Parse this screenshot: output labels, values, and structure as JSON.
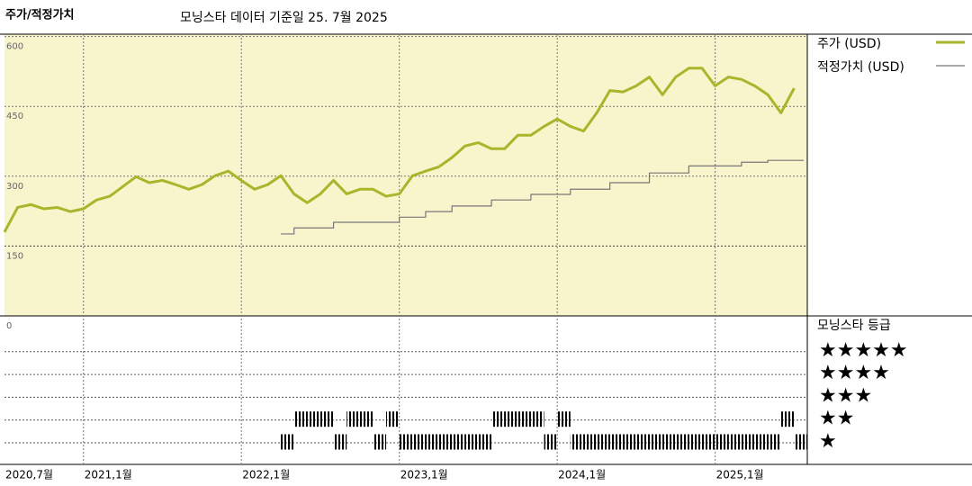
{
  "chart_data": {
    "type": "line",
    "title": "주가/적정가치",
    "subtitle": "모닝스타 데이터 기준일 25. 7월 2025",
    "x": [
      "2020-07",
      "2020-08",
      "2020-09",
      "2020-10",
      "2020-11",
      "2020-12",
      "2021-01",
      "2021-02",
      "2021-03",
      "2021-04",
      "2021-05",
      "2021-06",
      "2021-07",
      "2021-08",
      "2021-09",
      "2021-10",
      "2021-11",
      "2021-12",
      "2022-01",
      "2022-02",
      "2022-03",
      "2022-04",
      "2022-05",
      "2022-06",
      "2022-07",
      "2022-08",
      "2022-09",
      "2022-10",
      "2022-11",
      "2022-12",
      "2023-01",
      "2023-02",
      "2023-03",
      "2023-04",
      "2023-05",
      "2023-06",
      "2023-07",
      "2023-08",
      "2023-09",
      "2023-10",
      "2023-11",
      "2023-12",
      "2024-01",
      "2024-02",
      "2024-03",
      "2024-04",
      "2024-05",
      "2024-06",
      "2024-07",
      "2024-08",
      "2024-09",
      "2024-10",
      "2024-11",
      "2024-12",
      "2025-01",
      "2025-02",
      "2025-03",
      "2025-04",
      "2025-05",
      "2025-06",
      "2025-07"
    ],
    "xlim": [
      "2020-07",
      "2025-08"
    ],
    "xticks": [
      {
        "value": "2020-07",
        "label": "2020,7월"
      },
      {
        "value": "2021-01",
        "label": "2021,1월"
      },
      {
        "value": "2022-01",
        "label": "2022,1월"
      },
      {
        "value": "2023-01",
        "label": "2023,1월"
      },
      {
        "value": "2024-01",
        "label": "2024,1월"
      },
      {
        "value": "2025-01",
        "label": "2025,1월"
      }
    ],
    "ylim": [
      0,
      605
    ],
    "yticks": [
      0,
      150,
      300,
      450,
      600
    ],
    "series": [
      {
        "name": "주가 (USD)",
        "color": "#a9b52b",
        "values": [
          180,
          233,
          239,
          230,
          233,
          224,
          230,
          249,
          257,
          278,
          299,
          286,
          291,
          282,
          272,
          282,
          301,
          311,
          291,
          272,
          282,
          301,
          262,
          243,
          262,
          291,
          262,
          272,
          272,
          257,
          262,
          301,
          311,
          320,
          340,
          365,
          372,
          359,
          359,
          388,
          388,
          407,
          423,
          407,
          397,
          436,
          484,
          481,
          494,
          513,
          475,
          513,
          532,
          532,
          494,
          513,
          508,
          494,
          475,
          436,
          489
        ]
      },
      {
        "name": "적정가치 (USD)",
        "color": "#777777",
        "step": true,
        "values": [
          null,
          null,
          null,
          null,
          null,
          null,
          null,
          null,
          null,
          null,
          null,
          null,
          null,
          null,
          null,
          null,
          null,
          null,
          null,
          null,
          null,
          176,
          189,
          189,
          189,
          201,
          201,
          201,
          201,
          201,
          212,
          212,
          224,
          224,
          236,
          236,
          236,
          249,
          249,
          249,
          261,
          261,
          261,
          272,
          272,
          272,
          286,
          286,
          286,
          307,
          307,
          307,
          322,
          322,
          322,
          322,
          330,
          330,
          334,
          334,
          334
        ]
      }
    ],
    "rating": {
      "title": "모닝스타 등급",
      "levels": [
        "★",
        "★★",
        "★★★",
        "★★★★",
        "★★★★★"
      ],
      "color": "#000000",
      "values": [
        null,
        null,
        null,
        null,
        null,
        null,
        null,
        null,
        null,
        null,
        null,
        null,
        null,
        null,
        null,
        null,
        null,
        null,
        null,
        null,
        null,
        1,
        2,
        2,
        2,
        1,
        2,
        2,
        1,
        2,
        1,
        1,
        1,
        1,
        1,
        1,
        1,
        2,
        2,
        2,
        2,
        1,
        2,
        1,
        1,
        1,
        1,
        1,
        1,
        1,
        1,
        1,
        1,
        1,
        1,
        1,
        1,
        1,
        1,
        2,
        1
      ]
    }
  }
}
